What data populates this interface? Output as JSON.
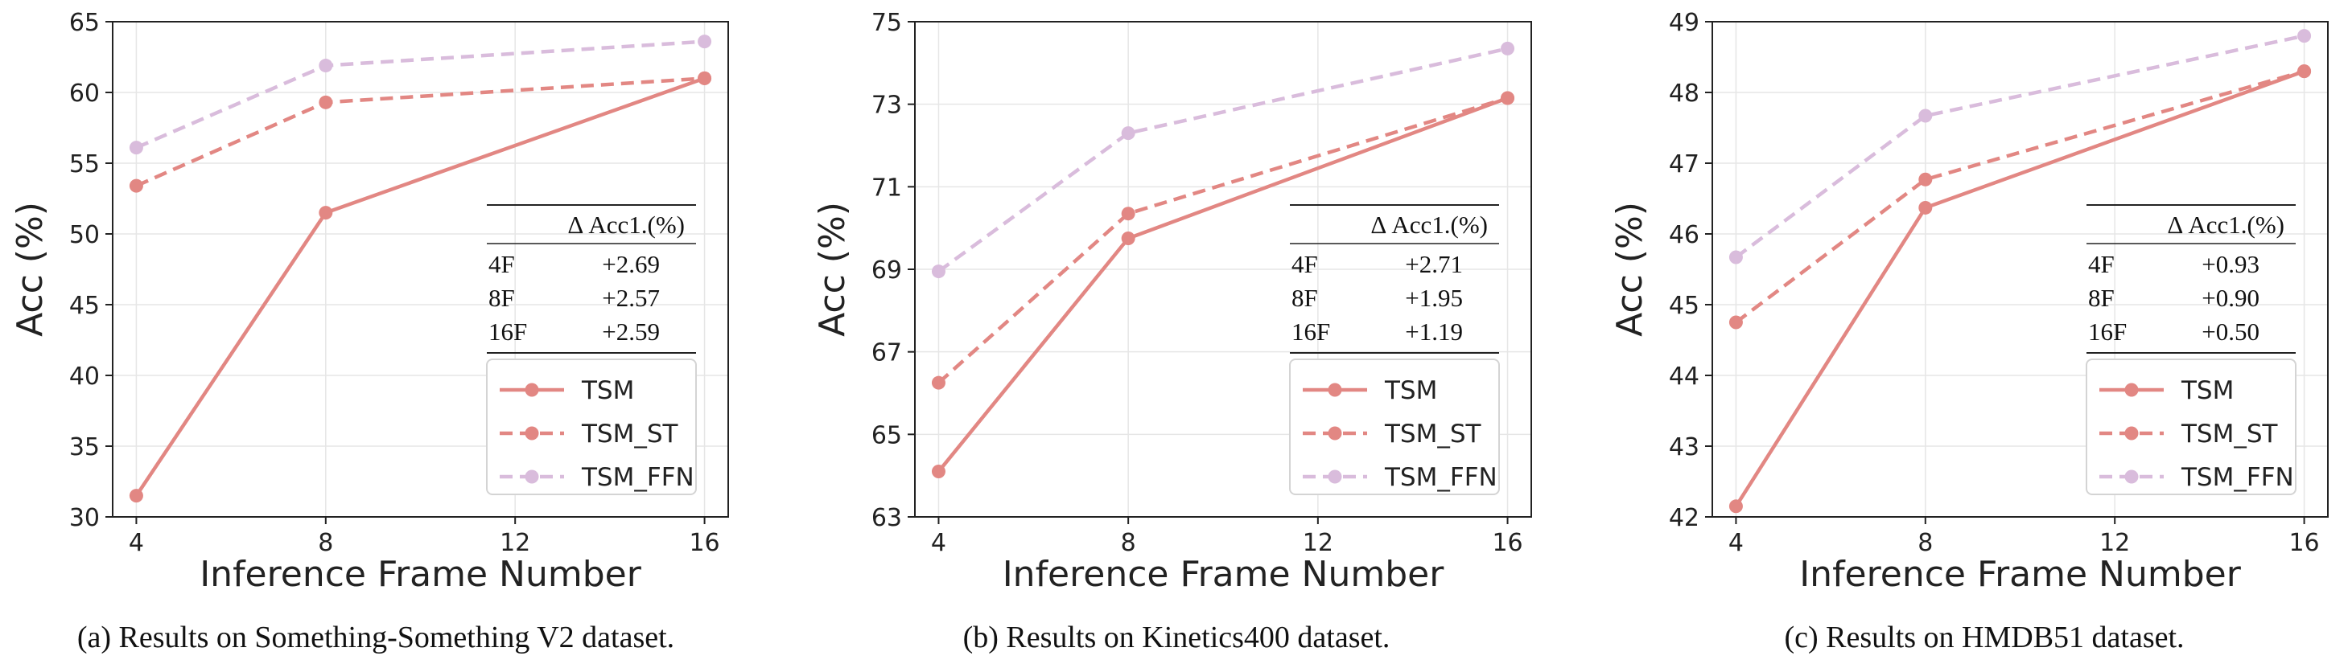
{
  "figure": {
    "legend_labels": [
      "TSM",
      "TSM_ST",
      "TSM_FFN"
    ],
    "delta_table_header": "Δ Acc1.(%)",
    "colors": {
      "TSM": "#e28783",
      "TSM_ST": "#e28783",
      "TSM_FFN": "#d9bcdc"
    }
  },
  "chart_data": [
    {
      "type": "line",
      "caption": "(a) Results on Something-Something V2 dataset.",
      "xlabel": "Inference Frame Number",
      "ylabel": "Acc (%)",
      "x": [
        4,
        8,
        16
      ],
      "xticks": [
        "4",
        "8",
        "12",
        "16"
      ],
      "ylim": [
        30,
        65
      ],
      "yticks": [
        "30",
        "35",
        "40",
        "45",
        "50",
        "55",
        "60",
        "65"
      ],
      "grid": true,
      "legend_placement": "lower-right",
      "series": [
        {
          "name": "TSM",
          "values": [
            31.5,
            51.5,
            61.0
          ],
          "style": "solid"
        },
        {
          "name": "TSM_ST",
          "values": [
            53.4,
            59.3,
            61.0
          ],
          "style": "dashed"
        },
        {
          "name": "TSM_FFN",
          "values": [
            56.1,
            61.9,
            63.6
          ],
          "style": "dashed"
        }
      ],
      "delta_table": [
        {
          "frames": "4F",
          "delta": "+2.69"
        },
        {
          "frames": "8F",
          "delta": "+2.57"
        },
        {
          "frames": "16F",
          "delta": "+2.59"
        }
      ]
    },
    {
      "type": "line",
      "caption": "(b) Results on Kinetics400 dataset.",
      "xlabel": "Inference Frame Number",
      "ylabel": "Acc (%)",
      "x": [
        4,
        8,
        16
      ],
      "xticks": [
        "4",
        "8",
        "12",
        "16"
      ],
      "ylim": [
        63,
        75
      ],
      "yticks": [
        "63",
        "65",
        "67",
        "69",
        "71",
        "73",
        "75"
      ],
      "grid": true,
      "legend_placement": "lower-right",
      "series": [
        {
          "name": "TSM",
          "values": [
            64.1,
            69.75,
            73.15
          ],
          "style": "solid"
        },
        {
          "name": "TSM_ST",
          "values": [
            66.25,
            70.35,
            73.15
          ],
          "style": "dashed"
        },
        {
          "name": "TSM_FFN",
          "values": [
            68.95,
            72.3,
            74.35
          ],
          "style": "dashed"
        }
      ],
      "delta_table": [
        {
          "frames": "4F",
          "delta": "+2.71"
        },
        {
          "frames": "8F",
          "delta": "+1.95"
        },
        {
          "frames": "16F",
          "delta": "+1.19"
        }
      ]
    },
    {
      "type": "line",
      "caption": "(c) Results on HMDB51 dataset.",
      "xlabel": "Inference Frame Number",
      "ylabel": "Acc (%)",
      "x": [
        4,
        8,
        16
      ],
      "xticks": [
        "4",
        "8",
        "12",
        "16"
      ],
      "ylim": [
        42,
        49
      ],
      "yticks": [
        "42",
        "43",
        "44",
        "45",
        "46",
        "47",
        "48",
        "49"
      ],
      "grid": true,
      "legend_placement": "lower-right",
      "series": [
        {
          "name": "TSM",
          "values": [
            42.15,
            46.37,
            48.3
          ],
          "style": "solid"
        },
        {
          "name": "TSM_ST",
          "values": [
            44.75,
            46.77,
            48.3
          ],
          "style": "dashed"
        },
        {
          "name": "TSM_FFN",
          "values": [
            45.67,
            47.67,
            48.8
          ],
          "style": "dashed"
        }
      ],
      "delta_table": [
        {
          "frames": "4F",
          "delta": "+0.93"
        },
        {
          "frames": "8F",
          "delta": "+0.90"
        },
        {
          "frames": "16F",
          "delta": "+0.50"
        }
      ]
    }
  ]
}
